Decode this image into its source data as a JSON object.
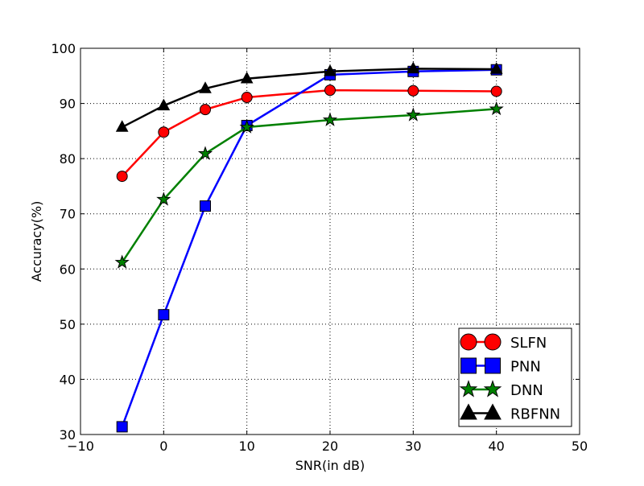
{
  "chart_data": {
    "type": "line",
    "xlabel": "SNR(in dB)",
    "ylabel": "Accuracy(%)",
    "xlim": [
      -10,
      50
    ],
    "ylim": [
      30,
      100
    ],
    "xticks": [
      -10,
      0,
      10,
      20,
      30,
      40,
      50
    ],
    "yticks": [
      30,
      40,
      50,
      60,
      70,
      80,
      90,
      100
    ],
    "x": [
      -5,
      0,
      5,
      10,
      20,
      30,
      40
    ],
    "grid": true,
    "legend_position": "lower-right",
    "series": [
      {
        "name": "SLFN",
        "color": "#ff0000",
        "marker": "circle",
        "values": [
          76.8,
          84.8,
          88.9,
          91.1,
          92.4,
          92.3,
          92.2
        ]
      },
      {
        "name": "PNN",
        "color": "#0000ff",
        "marker": "square",
        "values": [
          31.4,
          51.7,
          71.4,
          86.0,
          95.2,
          95.8,
          96.1
        ]
      },
      {
        "name": "DNN",
        "color": "#008000",
        "marker": "star",
        "values": [
          61.2,
          72.6,
          80.9,
          85.7,
          87.0,
          87.9,
          89.0
        ]
      },
      {
        "name": "RBFNN",
        "color": "#000000",
        "marker": "triangle",
        "values": [
          85.7,
          89.6,
          92.7,
          94.5,
          95.8,
          96.3,
          96.2
        ]
      }
    ]
  }
}
